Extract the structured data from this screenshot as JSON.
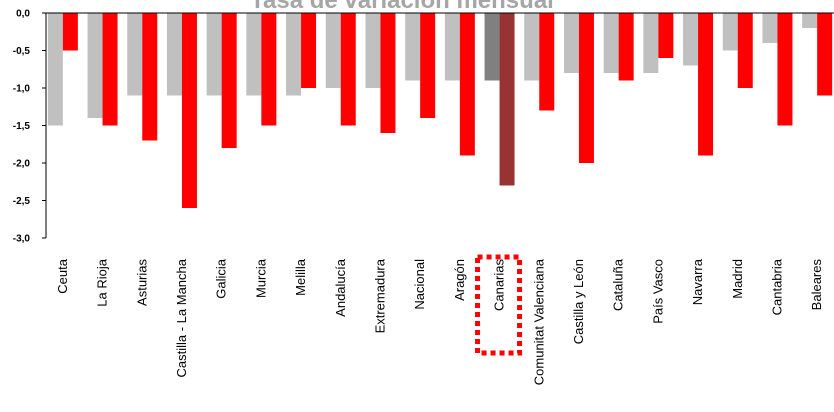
{
  "chart_data": {
    "type": "bar",
    "title": "Tasa de variación mensual",
    "categories": [
      "Ceuta",
      "La Rioja",
      "Asturias",
      "Castilla - La Mancha",
      "Galicia",
      "Murcia",
      "Melilla",
      "Andalucía",
      "Extremadura",
      "Nacional",
      "Aragón",
      "Canarias",
      "Comunitat Valenciana",
      "Castilla y León",
      "Cataluña",
      "País Vasco",
      "Navarra",
      "Madrid",
      "Cantabria",
      "Baleares"
    ],
    "series": [
      {
        "values": [
          -1.5,
          -1.4,
          -1.1,
          -1.1,
          -1.1,
          -1.1,
          -1.1,
          -1.0,
          -1.0,
          -0.9,
          -0.9,
          -0.9,
          -0.9,
          -0.8,
          -0.8,
          -0.8,
          -0.7,
          -0.5,
          -0.4,
          -0.2
        ]
      },
      {
        "values": [
          -0.5,
          -1.5,
          -1.7,
          -2.6,
          -1.8,
          -1.5,
          -1.0,
          -1.5,
          -1.6,
          -1.4,
          -1.9,
          -2.3,
          -1.3,
          -2.0,
          -0.9,
          -0.6,
          -1.9,
          -1.0,
          -1.5,
          -1.1
        ]
      }
    ],
    "ylim": [
      -3.0,
      0.0
    ],
    "yticks": [
      "0,0",
      "-0,5",
      "-1,0",
      "-1,5",
      "-2,0",
      "-2,5",
      "-3,0"
    ],
    "highlight_category": "Canarias",
    "colors": {
      "series1": "#c0c0c0",
      "series2": "#ff0000",
      "highlight1": "#808080",
      "highlight2": "#993333",
      "highlight_box": "#ff0000",
      "title": "#a6a6a6"
    }
  }
}
